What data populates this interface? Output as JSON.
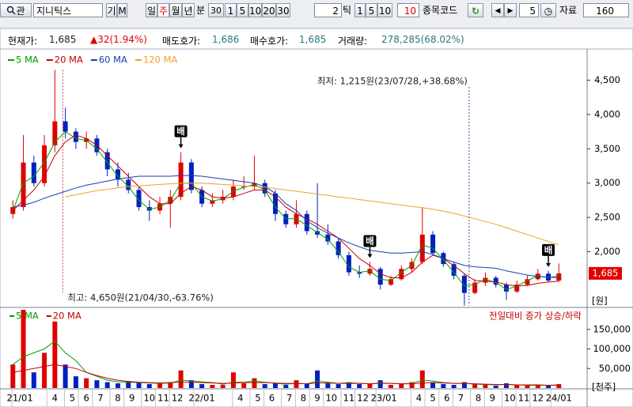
{
  "toolbar": [
    "관",
    "지니틱스",
    "기",
    "M",
    "일",
    "주",
    "월",
    "년",
    "분",
    "30",
    "1",
    "5",
    "10",
    "20",
    "30",
    "2",
    "틱",
    "1",
    "5",
    "10",
    "10",
    "종목코드",
    "5",
    "자료",
    "160"
  ],
  "info": [
    {
      "label": "현재가:",
      "value": "1,685"
    },
    {
      "label": "▲32(1.94%)"
    },
    {
      "label": "매도호가:",
      "value": "1,686"
    },
    {
      "label": "매수호가:",
      "value": "1,685"
    },
    {
      "label": "거래량:",
      "value": "278,285(68.02%)"
    }
  ],
  "chart_data": {
    "type": "candlestick",
    "x": [
      0,
      3,
      6,
      9,
      12,
      15,
      18,
      21,
      24,
      27,
      30,
      33,
      36,
      39,
      42,
      45,
      48,
      51,
      54,
      57,
      60,
      63,
      66,
      69,
      72,
      75,
      78,
      81,
      84,
      87,
      90,
      93,
      96,
      99,
      102,
      105,
      108,
      111,
      114,
      117,
      120,
      123,
      126,
      129,
      132,
      135,
      138,
      141,
      144,
      147,
      150,
      153,
      156
    ],
    "open": [
      2550,
      2650,
      3300,
      3000,
      3550,
      3900,
      3750,
      3600,
      3650,
      3450,
      3200,
      3050,
      2900,
      2650,
      2600,
      2700,
      2800,
      3300,
      2900,
      2700,
      2750,
      2800,
      2950,
      2950,
      3000,
      2850,
      2550,
      2400,
      2550,
      2300,
      2250,
      2150,
      1950,
      1700,
      1680,
      1750,
      1520,
      1600,
      1750,
      1850,
      2250,
      1980,
      1820,
      1650,
      1400,
      1550,
      1620,
      1520,
      1420,
      1520,
      1600,
      1680,
      1580
    ],
    "high": [
      2750,
      3700,
      3400,
      3700,
      4650,
      4100,
      3800,
      3750,
      3700,
      3500,
      3300,
      3150,
      2950,
      2750,
      2800,
      2900,
      3450,
      3350,
      2950,
      2850,
      2900,
      3050,
      3100,
      3400,
      3050,
      2900,
      2600,
      2750,
      2600,
      3000,
      2400,
      2200,
      2000,
      1800,
      1850,
      1780,
      1650,
      1800,
      1900,
      2650,
      2300,
      2000,
      1850,
      1680,
      1600,
      1700,
      1650,
      1550,
      1580,
      1650,
      1750,
      1720,
      1830
    ],
    "low": [
      2480,
      2600,
      2950,
      2950,
      3450,
      3650,
      3500,
      3500,
      3400,
      3100,
      2950,
      2850,
      2600,
      2450,
      2550,
      2350,
      2750,
      2850,
      2650,
      2650,
      2700,
      2750,
      2900,
      2900,
      2800,
      2450,
      2350,
      2350,
      2250,
      2200,
      2100,
      1900,
      1650,
      1620,
      1650,
      1450,
      1500,
      1580,
      1700,
      1820,
      1950,
      1780,
      1600,
      1215,
      1380,
      1500,
      1480,
      1300,
      1400,
      1500,
      1580,
      1550,
      1560
    ],
    "close": [
      2650,
      3300,
      3000,
      3550,
      3900,
      3750,
      3600,
      3650,
      3450,
      3200,
      3050,
      2900,
      2650,
      2600,
      2700,
      2800,
      3300,
      2900,
      2700,
      2750,
      2800,
      2950,
      2950,
      3000,
      2850,
      2550,
      2400,
      2550,
      2300,
      2250,
      2150,
      1950,
      1700,
      1680,
      1750,
      1520,
      1600,
      1750,
      1850,
      2250,
      1980,
      1820,
      1650,
      1400,
      1550,
      1620,
      1520,
      1420,
      1520,
      1600,
      1680,
      1580,
      1685
    ],
    "up_color": "#e00000",
    "down_color": "#0020c0",
    "series": [
      {
        "name": "5 MA",
        "color": "#00a000",
        "values": [
          2600,
          3000,
          3100,
          3300,
          3600,
          3750,
          3650,
          3620,
          3500,
          3300,
          3100,
          2950,
          2750,
          2620,
          2650,
          2750,
          3000,
          3000,
          2800,
          2740,
          2770,
          2880,
          2940,
          2980,
          2900,
          2650,
          2480,
          2480,
          2380,
          2280,
          2180,
          2000,
          1780,
          1700,
          1720,
          1600,
          1580,
          1700,
          1800,
          2100,
          2050,
          1880,
          1700,
          1500,
          1520,
          1600,
          1550,
          1450,
          1500,
          1580,
          1650,
          1620,
          1650
        ]
      },
      {
        "name": "20 MA",
        "color": "#c80000",
        "values": [
          2600,
          2750,
          2900,
          3100,
          3400,
          3600,
          3700,
          3650,
          3550,
          3400,
          3250,
          3100,
          2950,
          2800,
          2700,
          2700,
          2850,
          2950,
          2900,
          2800,
          2780,
          2800,
          2850,
          2900,
          2900,
          2800,
          2650,
          2550,
          2480,
          2400,
          2300,
          2200,
          2050,
          1900,
          1800,
          1680,
          1620,
          1620,
          1700,
          1850,
          1950,
          1900,
          1800,
          1680,
          1580,
          1570,
          1560,
          1520,
          1500,
          1510,
          1540,
          1560,
          1570
        ]
      },
      {
        "name": "60 MA",
        "color": "#1a3fb0",
        "values": [
          2650,
          2680,
          2720,
          2780,
          2830,
          2880,
          2930,
          2970,
          3000,
          3030,
          3060,
          3080,
          3100,
          3100,
          3100,
          3100,
          3110,
          3110,
          3100,
          3080,
          3060,
          3040,
          3020,
          3000,
          2950,
          2850,
          2700,
          2600,
          2450,
          2350,
          2270,
          2200,
          2130,
          2070,
          2020,
          2000,
          1980,
          1980,
          1990,
          2000,
          1960,
          1900,
          1850,
          1800,
          1780,
          1770,
          1760,
          1720,
          1690,
          1660,
          1640,
          1630,
          1620
        ]
      },
      {
        "name": "120 MA",
        "color": "#f0a030",
        "values": [
          null,
          null,
          null,
          null,
          null,
          2800,
          2830,
          2860,
          2890,
          2910,
          2930,
          2950,
          2960,
          2970,
          2980,
          2990,
          3000,
          3000,
          3000,
          2990,
          2980,
          2970,
          2960,
          2950,
          2940,
          2920,
          2900,
          2880,
          2860,
          2840,
          2820,
          2800,
          2780,
          2760,
          2740,
          2720,
          2700,
          2680,
          2660,
          2640,
          2620,
          2590,
          2560,
          2520,
          2480,
          2440,
          2400,
          2350,
          2300,
          2250,
          2200,
          2150,
          2100
        ]
      }
    ],
    "xlim": [
      -3,
      160
    ],
    "ylim": [
      1200,
      5000
    ],
    "yticks": [
      {
        "value": 2000,
        "label": "2,000"
      },
      {
        "value": 2500,
        "label": "2,500"
      },
      {
        "value": 3000,
        "label": "3,000"
      },
      {
        "value": 3500,
        "label": "3,500"
      },
      {
        "value": 4000,
        "label": "4,000"
      },
      {
        "value": 4500,
        "label": "4,500"
      }
    ],
    "xticks": [
      {
        "value": 2,
        "label": "21/01"
      },
      {
        "value": 12,
        "label": "4"
      },
      {
        "value": 17,
        "label": "5"
      },
      {
        "value": 21,
        "label": "6"
      },
      {
        "value": 25,
        "label": "7"
      },
      {
        "value": 30,
        "label": "8"
      },
      {
        "value": 34,
        "label": "9"
      },
      {
        "value": 39,
        "label": "10"
      },
      {
        "value": 43,
        "label": "11"
      },
      {
        "value": 47,
        "label": "12"
      },
      {
        "value": 54,
        "label": "22/01"
      },
      {
        "value": 65,
        "label": "4"
      },
      {
        "value": 70,
        "label": "5"
      },
      {
        "value": 74,
        "label": "6"
      },
      {
        "value": 79,
        "label": "7"
      },
      {
        "value": 83,
        "label": "8"
      },
      {
        "value": 87,
        "label": "9"
      },
      {
        "value": 91,
        "label": "10"
      },
      {
        "value": 96,
        "label": "11"
      },
      {
        "value": 100,
        "label": "12"
      },
      {
        "value": 106,
        "label": "23/01"
      },
      {
        "value": 116,
        "label": "4"
      },
      {
        "value": 120,
        "label": "5"
      },
      {
        "value": 124,
        "label": "6"
      },
      {
        "value": 128,
        "label": "7"
      },
      {
        "value": 133,
        "label": "8"
      },
      {
        "value": 137,
        "label": "9"
      },
      {
        "value": 142,
        "label": "10"
      },
      {
        "value": 146,
        "label": "11"
      },
      {
        "value": 150,
        "label": "12"
      },
      {
        "value": 156,
        "label": "24/01"
      }
    ],
    "unit_label": "[원]",
    "current_price": {
      "value": 1685,
      "label": "1,685"
    },
    "high_note": "최고: 4,650원(21/04/30,-63.76%)",
    "low_note": "최저: 1,215원(23/07/28,+38.68%)",
    "markers": [
      {
        "label": "배",
        "x": 48
      },
      {
        "label": "배",
        "x": 102
      },
      {
        "label": "배",
        "x": 153
      }
    ],
    "volume": {
      "values": [
        60000,
        200000,
        40000,
        90000,
        170000,
        60000,
        30000,
        25000,
        20000,
        15000,
        12000,
        18000,
        15000,
        10000,
        12000,
        15000,
        45000,
        20000,
        10000,
        8000,
        8000,
        40000,
        12000,
        25000,
        10000,
        12000,
        8000,
        20000,
        10000,
        45000,
        12000,
        10000,
        15000,
        10000,
        12000,
        20000,
        8000,
        12000,
        15000,
        45000,
        15000,
        10000,
        8000,
        15000,
        10000,
        8000,
        6000,
        12000,
        8000,
        6000,
        8000,
        6000,
        10000
      ],
      "series": [
        {
          "name": "5 MA",
          "color": "#00a000",
          "values": [
            60000,
            80000,
            90000,
            100000,
            120000,
            90000,
            70000,
            40000,
            30000,
            20000,
            16000,
            15000,
            14000,
            13000,
            12000,
            13000,
            20000,
            18000,
            16000,
            14000,
            10000,
            15000,
            15000,
            18000,
            15000,
            12000,
            10000,
            12000,
            11000,
            18000,
            15000,
            12000,
            14000,
            12000,
            11000,
            13000,
            12000,
            11000,
            12000,
            20000,
            18000,
            14000,
            12000,
            12000,
            10000,
            9000,
            8000,
            9000,
            8000,
            7000,
            7000,
            7000,
            8000
          ]
        },
        {
          "name": "20 MA",
          "color": "#c80000",
          "values": [
            40000,
            45000,
            50000,
            55000,
            60000,
            55000,
            50000,
            40000,
            32000,
            25000,
            20000,
            17000,
            15000,
            14000,
            13000,
            14000,
            15000,
            15000,
            14000,
            13000,
            12000,
            13000,
            14000,
            14000,
            14000,
            13000,
            12000,
            12000,
            11000,
            13000,
            13000,
            12000,
            12000,
            12000,
            11000,
            12000,
            12000,
            11000,
            11000,
            13000,
            14000,
            13000,
            12000,
            12000,
            11000,
            10000,
            9000,
            9000,
            8000,
            8000,
            8000,
            7000,
            7000
          ]
        }
      ],
      "ylim": [
        0,
        200000
      ],
      "yticks": [
        {
          "value": 50000,
          "label": "50,000"
        },
        {
          "value": 100000,
          "label": "100,000"
        },
        {
          "value": 150000,
          "label": "150,000"
        }
      ],
      "unit_label": "[천주]",
      "note": "전일대비 증가 상승/하락"
    }
  }
}
